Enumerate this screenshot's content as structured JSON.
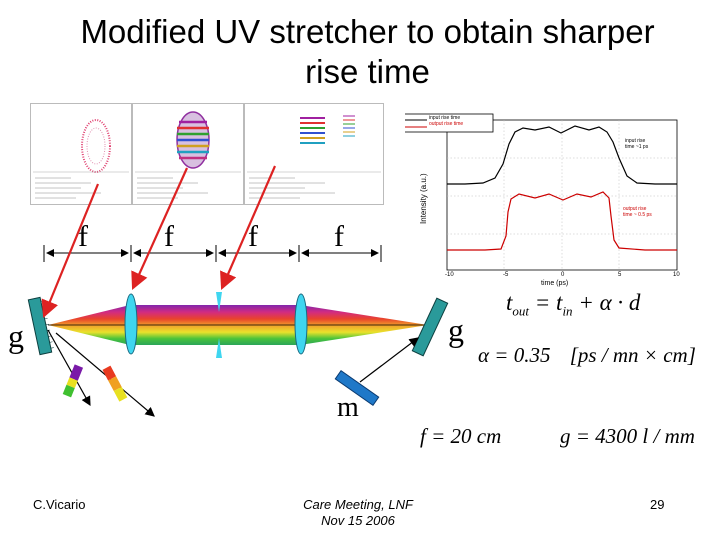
{
  "slide": {
    "title_line1": "Modified UV stretcher to obtain sharper",
    "title_line2": "rise time",
    "author": "C.Vicario",
    "meeting_line1": "Care Meeting, LNF",
    "meeting_line2": "Nov 15 2006",
    "page_number": "29"
  },
  "setup": {
    "focal_labels": [
      "f",
      "f",
      "f",
      "f"
    ],
    "grating_left_label": "g",
    "grating_right_label": "g",
    "mirror_label": "m"
  },
  "equations": {
    "t_out": "t",
    "t_out_sub": "out",
    "eq_equals": " = t",
    "t_in_sub": "in",
    "eq_rest": " + α · d",
    "alpha": "α = 0.35",
    "alpha_units": "[ps / mn × cm]",
    "focal": "f = 20 cm",
    "grating": "g = 4300 l / mm"
  },
  "inset_plot": {
    "ylabel": "Intensity (a.u.)",
    "xlabel": "time (ps)",
    "legend": [
      "input rise time",
      "output rise time"
    ],
    "annot_top": [
      "input rise",
      "time ~1 ps"
    ],
    "annot_bottom": [
      "output rise",
      "time ~ 0.5 ps"
    ],
    "x_ticks": [
      "-10",
      "-5",
      "0",
      "5",
      "10"
    ],
    "colors": {
      "top_trace": "#000000",
      "bottom_trace": "#cc0000"
    }
  },
  "colors": {
    "lens": "#3fd6f0",
    "grating": "#2a9a9a",
    "arrow_red": "#dd2222"
  }
}
